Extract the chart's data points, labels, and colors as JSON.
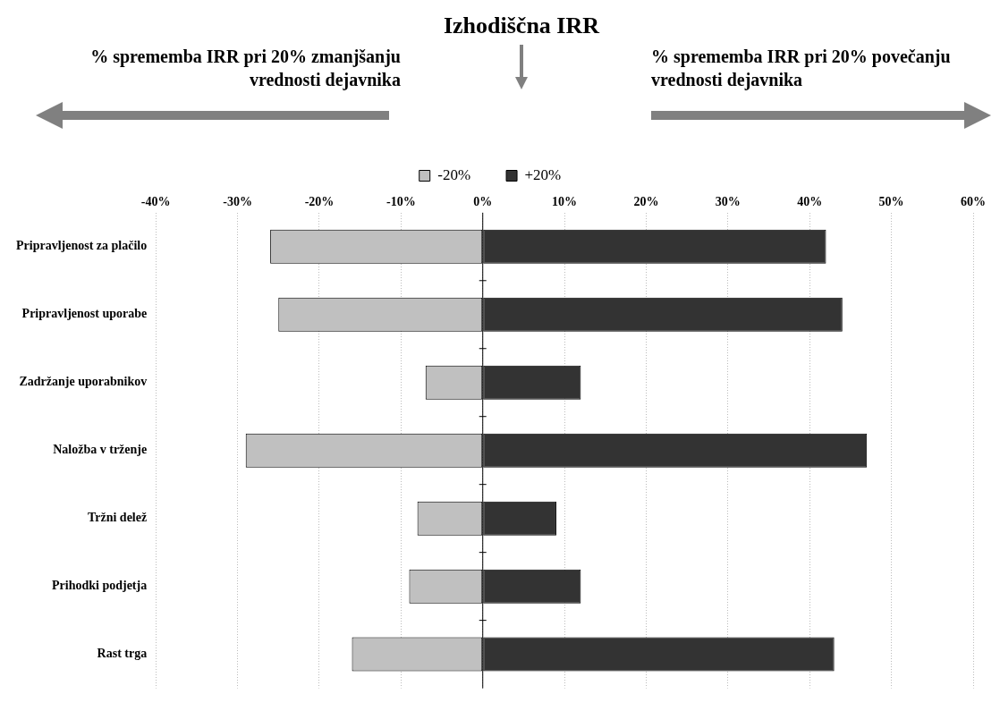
{
  "chart_data": {
    "type": "bar",
    "orientation": "horizontal",
    "stacked": true,
    "title": "Izhodiščna IRR",
    "annotations": [
      "% sprememba IRR pri 20% zmanjšanju vrednosti dejavnika",
      "% sprememba IRR pri 20% povečanju vrednosti dejavnika"
    ],
    "categories": [
      "Pripravljenost za plačilo",
      "Pripravljenost uporabe",
      "Zadržanje uporabnikov",
      "Naložba v trženje",
      "Tržni delež",
      "Prihodki podjetja",
      "Rast trga"
    ],
    "series": [
      {
        "name": "-20%",
        "color": "#c0c0c0",
        "values": [
          -26,
          -25,
          -7,
          -29,
          -8,
          -9,
          -16
        ]
      },
      {
        "name": "+20%",
        "color": "#333333",
        "values": [
          42,
          44,
          12,
          47,
          9,
          12,
          43
        ]
      }
    ],
    "xlim": [
      -40,
      60
    ],
    "xticks": [
      {
        "value": -40,
        "label": "-40%"
      },
      {
        "value": -30,
        "label": "-30%"
      },
      {
        "value": -20,
        "label": "-20%"
      },
      {
        "value": -10,
        "label": "-10%"
      },
      {
        "value": 0,
        "label": "0%"
      },
      {
        "value": 10,
        "label": "10%"
      },
      {
        "value": 20,
        "label": "20%"
      },
      {
        "value": 30,
        "label": "30%"
      },
      {
        "value": 40,
        "label": "40%"
      },
      {
        "value": 50,
        "label": "50%"
      },
      {
        "value": 60,
        "label": "60%"
      }
    ],
    "grid": "x",
    "legend": "top"
  }
}
